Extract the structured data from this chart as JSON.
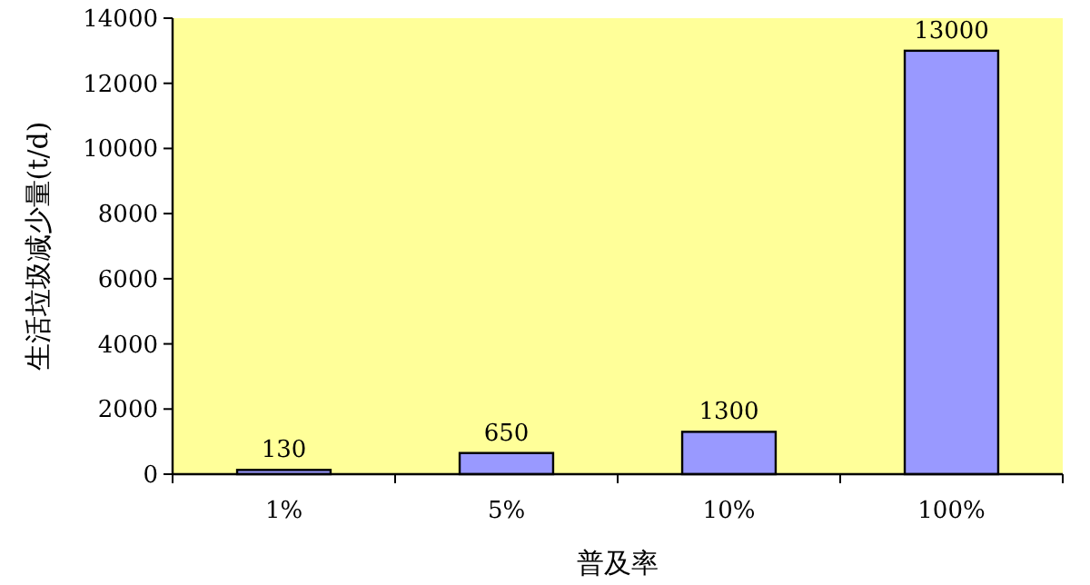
{
  "chart_data": {
    "type": "bar",
    "categories": [
      "1%",
      "5%",
      "10%",
      "100%"
    ],
    "values": [
      130,
      650,
      1300,
      13000
    ],
    "color": "#9999ff",
    "ylim": [
      0,
      14000
    ],
    "yticks": [
      0,
      2000,
      4000,
      6000,
      8000,
      10000,
      12000,
      14000
    ],
    "xlabel": "普及率",
    "ylabel": "生活垃圾减少量(t/d)",
    "data_labels": true
  }
}
